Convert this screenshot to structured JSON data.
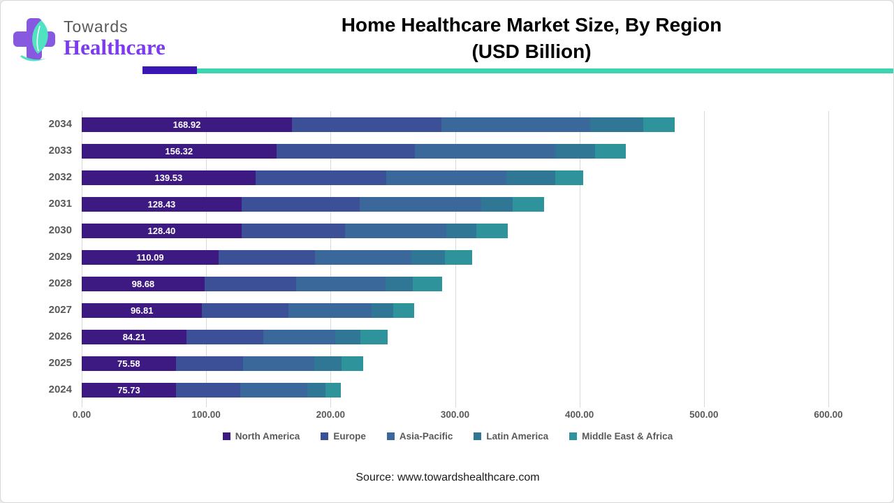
{
  "logo": {
    "line1": "Towards",
    "line2": "Healthcare"
  },
  "title": {
    "line1": "Home Healthcare Market Size, By Region",
    "line2": "(USD Billion)"
  },
  "source": "Source: www.towardshealthcare.com",
  "colors": {
    "north_america": "#3d1982",
    "europe": "#3b5096",
    "asia_pacific": "#3a689b",
    "latin_america": "#2f7795",
    "middle_east_africa": "#2e939a",
    "rule_purple": "#3a16b2",
    "rule_teal": "#3bd5af",
    "axis_text": "#595959",
    "gridline": "#d9d9d9",
    "logo_cross": "#8659e0",
    "logo_leaf": "#50e3c2",
    "logo_wordmark": "#7c3bf0"
  },
  "chart_data": {
    "type": "bar",
    "orientation": "horizontal",
    "stacked": true,
    "title": "Home Healthcare Market Size, By Region (USD Billion)",
    "xlabel": "",
    "ylabel": "",
    "xlim": [
      0,
      600
    ],
    "grid": "vertical",
    "legend_position": "bottom",
    "categories": [
      "2034",
      "2033",
      "2032",
      "2031",
      "2030",
      "2029",
      "2028",
      "2027",
      "2026",
      "2025",
      "2024"
    ],
    "x_ticks": [
      "0.00",
      "100.00",
      "200.00",
      "300.00",
      "400.00",
      "500.00",
      "600.00"
    ],
    "x_tick_values": [
      0,
      100,
      200,
      300,
      400,
      500,
      600
    ],
    "series": [
      {
        "name": "North America",
        "color": "#3d1982",
        "values": [
          168.92,
          156.32,
          139.53,
          128.43,
          128.4,
          110.09,
          98.68,
          96.81,
          84.21,
          75.58,
          75.73
        ],
        "labels": [
          "168.92",
          "156.32",
          "139.53",
          "128.43",
          "128.40",
          "110.09",
          "98.68",
          "96.81",
          "84.21",
          "75.58",
          "75.73"
        ]
      },
      {
        "name": "Europe",
        "color": "#3b5096",
        "values": [
          120.0,
          111.5,
          105.3,
          95.0,
          83.3,
          77.2,
          73.4,
          69.3,
          61.8,
          54.0,
          51.6
        ]
      },
      {
        "name": "Asia-Pacific",
        "color": "#3a689b",
        "values": [
          119.5,
          112.9,
          96.4,
          97.5,
          81.3,
          77.8,
          72.0,
          67.0,
          57.9,
          57.5,
          54.2
        ]
      },
      {
        "name": "Latin America",
        "color": "#2f7795",
        "values": [
          43.0,
          32.0,
          39.4,
          25.2,
          24.4,
          26.7,
          22.0,
          17.0,
          20.2,
          21.5,
          14.6
        ]
      },
      {
        "name": "Middle East & Africa",
        "color": "#2e939a",
        "values": [
          25.2,
          24.4,
          22.2,
          25.3,
          24.8,
          22.0,
          23.8,
          17.1,
          21.6,
          17.6,
          12.1
        ]
      }
    ]
  }
}
